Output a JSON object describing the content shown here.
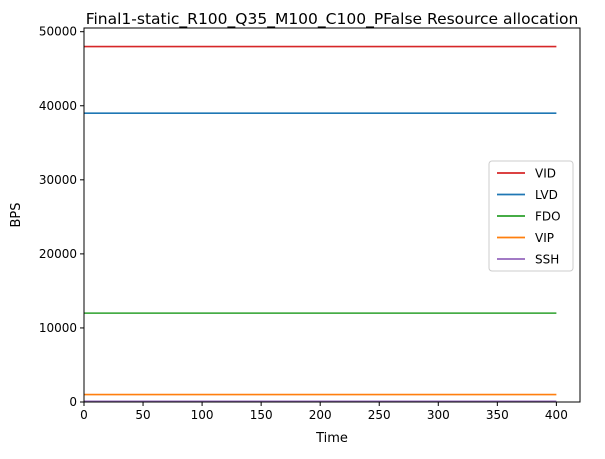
{
  "chart_data": {
    "type": "line",
    "title": "Final1-static_R100_Q35_M100_C100_PFalse Resource allocation",
    "xlabel": "Time",
    "ylabel": "BPS",
    "xlim": [
      0,
      420
    ],
    "ylim": [
      0,
      50500
    ],
    "xticks": [
      0,
      50,
      100,
      150,
      200,
      250,
      300,
      350,
      400
    ],
    "yticks": [
      0,
      10000,
      20000,
      30000,
      40000,
      50000
    ],
    "grid": false,
    "legend_position": "center-right",
    "series": [
      {
        "name": "VID",
        "color": "#d62728",
        "x": [
          0,
          400
        ],
        "y": [
          48000,
          48000
        ]
      },
      {
        "name": "LVD",
        "color": "#1f77b4",
        "x": [
          0,
          400
        ],
        "y": [
          39000,
          39000
        ]
      },
      {
        "name": "FDO",
        "color": "#2ca02c",
        "x": [
          0,
          400
        ],
        "y": [
          12000,
          12000
        ]
      },
      {
        "name": "VIP",
        "color": "#ff7f0e",
        "x": [
          0,
          400
        ],
        "y": [
          1000,
          1000
        ]
      },
      {
        "name": "SSH",
        "color": "#9467bd",
        "x": [
          0,
          400
        ],
        "y": [
          100,
          100
        ]
      }
    ]
  }
}
